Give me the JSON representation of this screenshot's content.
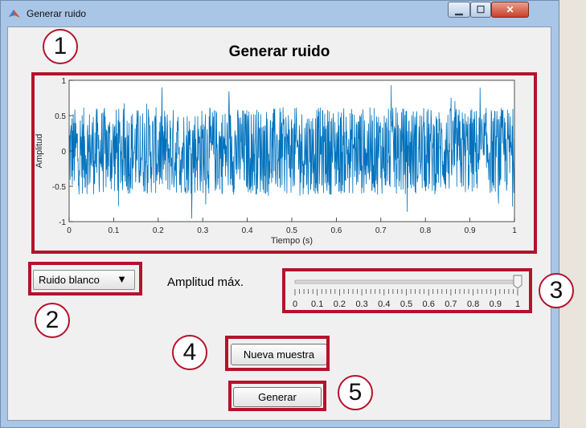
{
  "window": {
    "title": "Generar ruido"
  },
  "heading": "Generar ruido",
  "badges": [
    "1",
    "2",
    "3",
    "4",
    "5"
  ],
  "chart_data": {
    "type": "line",
    "title": "",
    "xlabel": "Tiempo (s)",
    "ylabel": "Amplitud",
    "xlim": [
      0,
      1
    ],
    "ylim": [
      -1,
      1
    ],
    "x_ticks": [
      "0",
      "0.1",
      "0.2",
      "0.3",
      "0.4",
      "0.5",
      "0.6",
      "0.7",
      "0.8",
      "0.9",
      "1"
    ],
    "y_ticks": [
      "1",
      "0.5",
      "0",
      "-0.5",
      "-1"
    ],
    "series": [
      {
        "description": "uniform white noise",
        "amplitude_max": 1,
        "color": "#0072bd"
      }
    ]
  },
  "noise_type": {
    "selected": "Ruido blanco"
  },
  "amplitude": {
    "label": "Amplitud máx.",
    "value": 1,
    "min": 0,
    "max": 1,
    "ticks": [
      "0",
      "0.1",
      "0.2",
      "0.3",
      "0.4",
      "0.5",
      "0.6",
      "0.7",
      "0.8",
      "0.9",
      "1"
    ]
  },
  "buttons": {
    "new_sample": "Nueva muestra",
    "generate": "Generar"
  },
  "colors": {
    "highlight": "#b5122c",
    "signal": "#0072bd"
  }
}
